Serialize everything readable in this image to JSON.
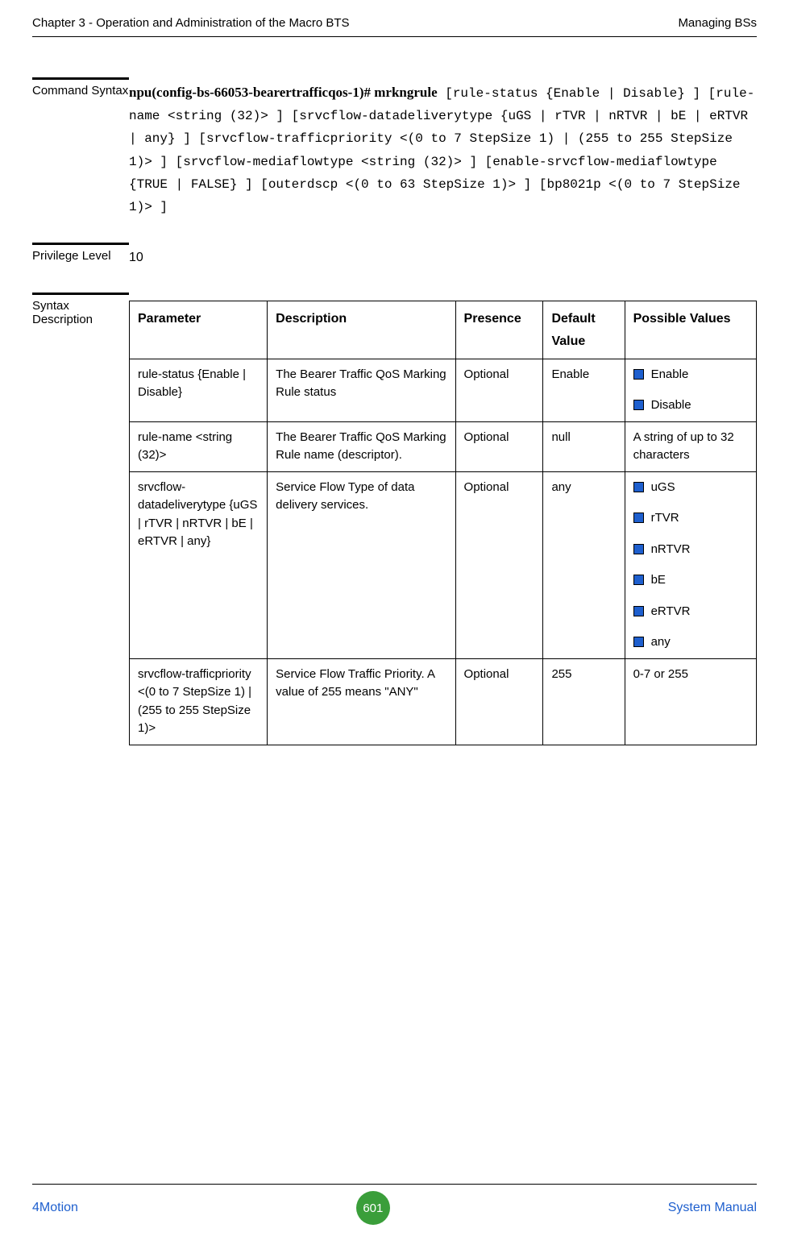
{
  "header": {
    "left": "Chapter 3 - Operation and Administration of the Macro BTS",
    "right": "Managing BSs"
  },
  "command_syntax": {
    "label": "Command Syntax",
    "bold": "npu(config-bs-66053-bearertrafficqos-1)# mrkngrule",
    "mono": " [rule-status {Enable | Disable} ] [rule-name <string (32)> ] [srvcflow-datadeliverytype {uGS | rTVR | nRTVR | bE | eRTVR | any} ] [srvcflow-trafficpriority <(0 to 7 StepSize 1) | (255 to 255 StepSize 1)> ] [srvcflow-mediaflowtype <string (32)> ] [enable-srvcflow-mediaflowtype {TRUE | FALSE} ] [outerdscp <(0 to 63 StepSize 1)> ] [bp8021p <(0 to 7 StepSize 1)> ]"
  },
  "privilege": {
    "label": "Privilege Level",
    "value": "10"
  },
  "syntax_desc": {
    "label": "Syntax Description",
    "headers": {
      "parameter": "Parameter",
      "description": "Description",
      "presence": "Presence",
      "default_value": "Default Value",
      "possible_values": "Possible Values"
    },
    "rows": [
      {
        "parameter": "rule-status {Enable | Disable}",
        "description": "The Bearer Traffic QoS Marking Rule status",
        "presence": "Optional",
        "default_value": "Enable",
        "possible_values": [
          "Enable",
          "Disable"
        ]
      },
      {
        "parameter": "rule-name <string (32)>",
        "description": "The Bearer Traffic QoS Marking Rule name (descriptor).",
        "presence": "Optional",
        "default_value": "null",
        "possible_values_text": "A string of up to 32 characters"
      },
      {
        "parameter": "srvcflow-datadeliverytype {uGS | rTVR | nRTVR | bE | eRTVR | any}",
        "description": "Service Flow Type of data delivery services.",
        "presence": "Optional",
        "default_value": "any",
        "possible_values": [
          "uGS",
          "rTVR",
          "nRTVR",
          "bE",
          "eRTVR",
          "any"
        ]
      },
      {
        "parameter": "srvcflow-trafficpriority <(0 to 7 StepSize 1) | (255 to 255 StepSize 1)>",
        "description": "Service Flow Traffic Priority. A value of 255 means \"ANY\"",
        "presence": "Optional",
        "default_value": "255",
        "possible_values_text": "0-7 or 255"
      }
    ]
  },
  "footer": {
    "left": "4Motion",
    "page": "601",
    "right": "System Manual"
  }
}
